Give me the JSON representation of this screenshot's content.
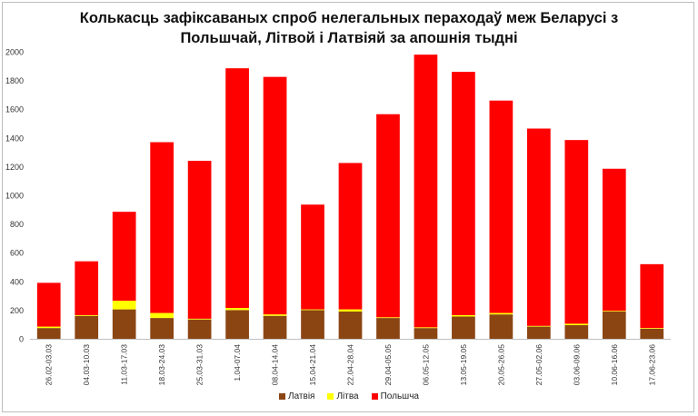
{
  "chart_data": {
    "type": "bar",
    "stacked": true,
    "title_line1": "Колькасць зафіксаваных спроб нелегальных пераходаў меж Беларусі з",
    "title_line2": "Польшчай, Літвой і Латвіяй за апошнія тыдні",
    "categories": [
      "26.02-03.03",
      "04.03-10.03",
      "11.03-17.03",
      "18.03-24.03",
      "25.03-31.03",
      "1.04-07.04",
      "08.04-14.04",
      "15.04-21.04",
      "22.04-28.04",
      "29.04-05.05",
      "06.05-12.05",
      "13.05-19.05",
      "20.05-26.05",
      "27.05-02.06",
      "03.06-09.06",
      "10.06-16.06",
      "17.06-23.06"
    ],
    "series": [
      {
        "name": "Латвія",
        "color": "#8B4513",
        "values": [
          75,
          160,
          205,
          145,
          135,
          200,
          160,
          200,
          190,
          145,
          75,
          155,
          170,
          85,
          95,
          190,
          70
        ]
      },
      {
        "name": "Літва",
        "color": "#FFFF00",
        "values": [
          10,
          5,
          60,
          35,
          5,
          15,
          10,
          5,
          15,
          5,
          5,
          10,
          10,
          5,
          10,
          5,
          5
        ]
      },
      {
        "name": "Польшча",
        "color": "#FF0000",
        "values": [
          305,
          375,
          620,
          1190,
          1100,
          1670,
          1655,
          730,
          1020,
          1415,
          1900,
          1695,
          1480,
          1375,
          1280,
          990,
          445
        ]
      }
    ],
    "ylim": [
      0,
      2000
    ],
    "yticks": [
      0,
      200,
      400,
      600,
      800,
      1000,
      1200,
      1400,
      1600,
      1800,
      2000
    ],
    "grid": false,
    "legend_position": "bottom"
  }
}
